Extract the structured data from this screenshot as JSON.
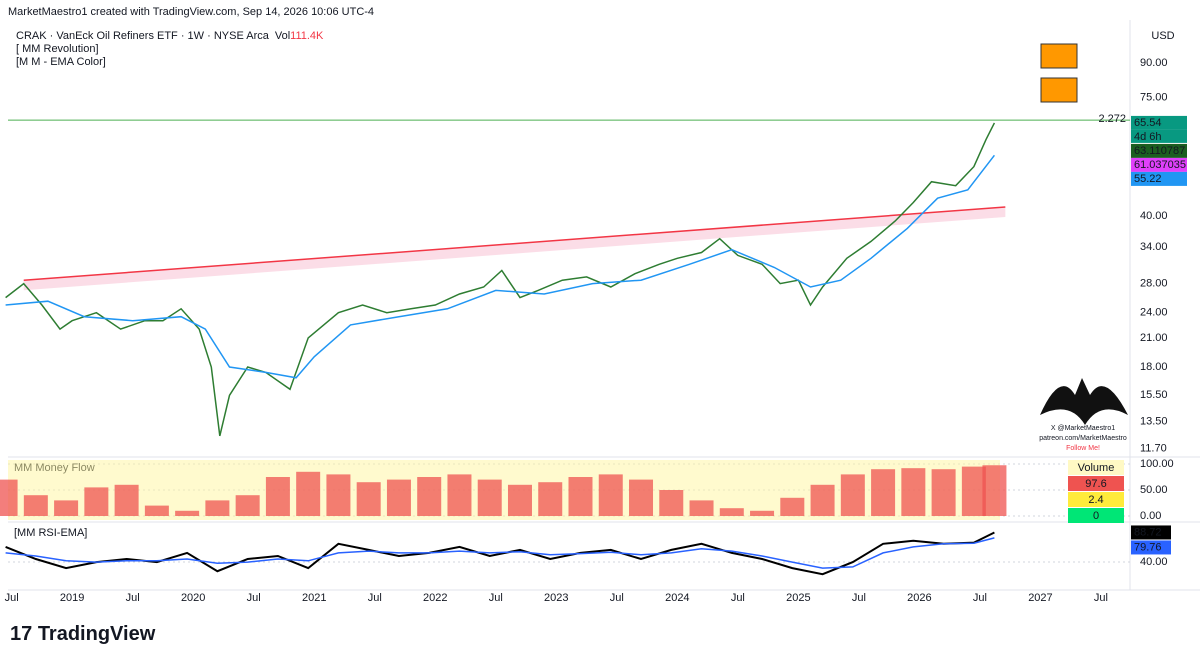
{
  "header": {
    "text": "MarketMaestro1 created with TradingView.com, Sep 14, 2026 10:06 UTC-4"
  },
  "legend": {
    "symbol": "CRAK · VanEck Oil Refiners ETF · 1W · NYSE Arca",
    "vol_label": "Vol",
    "vol_value": "111.4K",
    "indicators": [
      "[ MM Revolution]",
      "[M M - EMA Color]"
    ]
  },
  "chart_data": [
    {
      "type": "line",
      "currency": "USD",
      "log_scale": true,
      "xlim": [
        2018.47,
        2027.74
      ],
      "xticks": [
        {
          "value": 2018.5,
          "label": "Jul"
        },
        {
          "value": 2019,
          "label": "2019"
        },
        {
          "value": 2019.5,
          "label": "Jul"
        },
        {
          "value": 2020,
          "label": "2020"
        },
        {
          "value": 2020.5,
          "label": "Jul"
        },
        {
          "value": 2021,
          "label": "2021"
        },
        {
          "value": 2021.5,
          "label": "Jul"
        },
        {
          "value": 2022,
          "label": "2022"
        },
        {
          "value": 2022.5,
          "label": "Jul"
        },
        {
          "value": 2023,
          "label": "2023"
        },
        {
          "value": 2023.5,
          "label": "Jul"
        },
        {
          "value": 2024,
          "label": "2024"
        },
        {
          "value": 2024.5,
          "label": "Jul"
        },
        {
          "value": 2025,
          "label": "2025"
        },
        {
          "value": 2025.5,
          "label": "Jul"
        },
        {
          "value": 2026,
          "label": "2026"
        },
        {
          "value": 2026.5,
          "label": "Jul"
        },
        {
          "value": 2027,
          "label": "2027"
        },
        {
          "value": 2027.5,
          "label": "Jul"
        }
      ],
      "ylim": [
        11.3,
        113
      ],
      "yticks": [
        {
          "value": 90,
          "label": "90.00"
        },
        {
          "value": 75,
          "label": "75.00"
        },
        {
          "value": 40,
          "label": "40.00"
        },
        {
          "value": 34,
          "label": "34.00"
        },
        {
          "value": 28,
          "label": "28.00"
        },
        {
          "value": 24,
          "label": "24.00"
        },
        {
          "value": 21,
          "label": "21.00"
        },
        {
          "value": 18,
          "label": "18.00"
        },
        {
          "value": 15.5,
          "label": "15.50"
        },
        {
          "value": 13.5,
          "label": "13.50"
        },
        {
          "value": 11.7,
          "label": "11.70"
        }
      ],
      "series": [
        {
          "color": "#2e7d32",
          "x": [
            2018.45,
            2018.6,
            2018.75,
            2018.9,
            2019.0,
            2019.2,
            2019.4,
            2019.6,
            2019.75,
            2019.9,
            2020.05,
            2020.15,
            2020.22,
            2020.3,
            2020.45,
            2020.6,
            2020.8,
            2020.95,
            2021.2,
            2021.4,
            2021.6,
            2021.8,
            2022.0,
            2022.2,
            2022.4,
            2022.55,
            2022.7,
            2022.85,
            2023.05,
            2023.25,
            2023.45,
            2023.65,
            2023.85,
            2024.0,
            2024.2,
            2024.35,
            2024.5,
            2024.7,
            2024.85,
            2025.0,
            2025.1,
            2025.2,
            2025.4,
            2025.6,
            2025.8,
            2025.95,
            2026.1,
            2026.3,
            2026.45,
            2026.55,
            2026.62
          ],
          "values": [
            26,
            28,
            25,
            22,
            23,
            24,
            22,
            23,
            23,
            24.5,
            22,
            18,
            12.5,
            15.5,
            18,
            17.5,
            16,
            21,
            24,
            25,
            24,
            24.5,
            25,
            26.5,
            27.5,
            30,
            26,
            27,
            28.5,
            29,
            27.5,
            29.5,
            31,
            32,
            33,
            35.5,
            32.5,
            31,
            28,
            28.5,
            25,
            27.5,
            32,
            35,
            39,
            43,
            48,
            47,
            52,
            60,
            65.54
          ]
        },
        {
          "color": "#2196f3",
          "x": [
            2018.45,
            2018.8,
            2019.1,
            2019.5,
            2019.9,
            2020.1,
            2020.3,
            2020.6,
            2020.85,
            2021.0,
            2021.3,
            2021.7,
            2022.1,
            2022.5,
            2022.9,
            2023.3,
            2023.7,
            2024.1,
            2024.45,
            2024.8,
            2025.1,
            2025.35,
            2025.6,
            2025.9,
            2026.15,
            2026.4,
            2026.62
          ],
          "values": [
            25,
            25.5,
            23.5,
            23,
            23.5,
            22,
            18,
            17.5,
            17,
            19,
            22.5,
            23.5,
            24.5,
            27,
            26.5,
            28,
            28.5,
            31,
            33.5,
            30.5,
            27.5,
            28.5,
            32,
            37.5,
            44,
            46,
            55.22
          ]
        }
      ],
      "trendline": {
        "color": "#f23645",
        "x": [
          2018.6,
          2026.71
        ],
        "values": [
          28.5,
          42
        ]
      },
      "hline": {
        "value": 66.5,
        "label": "2.272",
        "color": "#4caf50"
      },
      "badges": [
        {
          "value": 65.54,
          "color": "#089981"
        },
        {
          "value": 63.110787,
          "color": "#1b5e20"
        },
        {
          "value": 61.037035,
          "color": "#e040fb"
        },
        {
          "value": 55.22,
          "color": "#2196f3"
        }
      ],
      "countdown": "4d 6h"
    },
    {
      "type": "bar",
      "title": "MM Money Flow",
      "ylim": [
        -7.7,
        107.7
      ],
      "yticks": [
        {
          "value": 100,
          "label": "100.00"
        },
        {
          "value": 50,
          "label": "50.00"
        },
        {
          "value": 0,
          "label": "0.00"
        }
      ],
      "x": [
        2018.45,
        2018.7,
        2018.95,
        2019.2,
        2019.45,
        2019.7,
        2019.95,
        2020.2,
        2020.45,
        2020.7,
        2020.95,
        2021.2,
        2021.45,
        2021.7,
        2021.95,
        2022.2,
        2022.45,
        2022.7,
        2022.95,
        2023.2,
        2023.45,
        2023.7,
        2023.95,
        2024.2,
        2024.45,
        2024.7,
        2024.95,
        2025.2,
        2025.45,
        2025.7,
        2025.95,
        2026.2,
        2026.45,
        2026.62
      ],
      "values": [
        70,
        40,
        30,
        55,
        60,
        20,
        10,
        30,
        40,
        75,
        85,
        80,
        65,
        70,
        75,
        80,
        70,
        60,
        65,
        75,
        80,
        70,
        50,
        30,
        15,
        10,
        35,
        60,
        80,
        90,
        92,
        90,
        95,
        97.6
      ],
      "color": "#ef5350",
      "legend_box": {
        "title": "Volume",
        "values": [
          97.6,
          2.4,
          0
        ],
        "colors": [
          "#ef5350",
          "#ffeb3b",
          "#00e676"
        ]
      }
    },
    {
      "type": "line",
      "title": "[MM RSI-EMA]",
      "ylim": [
        -6,
        101
      ],
      "yticks": [
        {
          "value": 40,
          "label": "40.00"
        }
      ],
      "series": [
        {
          "color": "#000000",
          "x": [
            2018.45,
            2018.7,
            2018.95,
            2019.2,
            2019.45,
            2019.7,
            2019.95,
            2020.2,
            2020.45,
            2020.7,
            2020.95,
            2021.2,
            2021.45,
            2021.7,
            2021.95,
            2022.2,
            2022.45,
            2022.7,
            2022.95,
            2023.2,
            2023.45,
            2023.7,
            2023.95,
            2024.2,
            2024.45,
            2024.7,
            2024.95,
            2025.2,
            2025.45,
            2025.7,
            2025.95,
            2026.2,
            2026.45,
            2026.62
          ],
          "values": [
            65,
            45,
            30,
            40,
            45,
            40,
            55,
            25,
            45,
            50,
            30,
            70,
            60,
            50,
            55,
            65,
            50,
            60,
            45,
            55,
            60,
            45,
            60,
            70,
            55,
            45,
            30,
            20,
            40,
            70,
            75,
            70,
            72,
            88.72
          ]
        },
        {
          "color": "#2962ff",
          "x": [
            2018.45,
            2018.7,
            2018.95,
            2019.2,
            2019.45,
            2019.7,
            2019.95,
            2020.2,
            2020.45,
            2020.7,
            2020.95,
            2021.2,
            2021.45,
            2021.7,
            2021.95,
            2022.2,
            2022.45,
            2022.7,
            2022.95,
            2023.2,
            2023.45,
            2023.7,
            2023.95,
            2024.2,
            2024.45,
            2024.7,
            2024.95,
            2025.2,
            2025.45,
            2025.7,
            2025.95,
            2026.2,
            2026.45,
            2026.62
          ],
          "values": [
            55,
            50,
            42,
            40,
            42,
            42,
            45,
            38,
            40,
            45,
            42,
            55,
            58,
            55,
            55,
            58,
            55,
            57,
            52,
            54,
            56,
            52,
            55,
            62,
            58,
            50,
            40,
            30,
            32,
            55,
            65,
            70,
            71,
            79.76
          ]
        }
      ]
    }
  ],
  "watermark": [
    "X @MarketMaestro1",
    "patreon.com/MarketMaestro",
    "Follow Me!"
  ],
  "footer": {
    "logo": "TradingView"
  }
}
